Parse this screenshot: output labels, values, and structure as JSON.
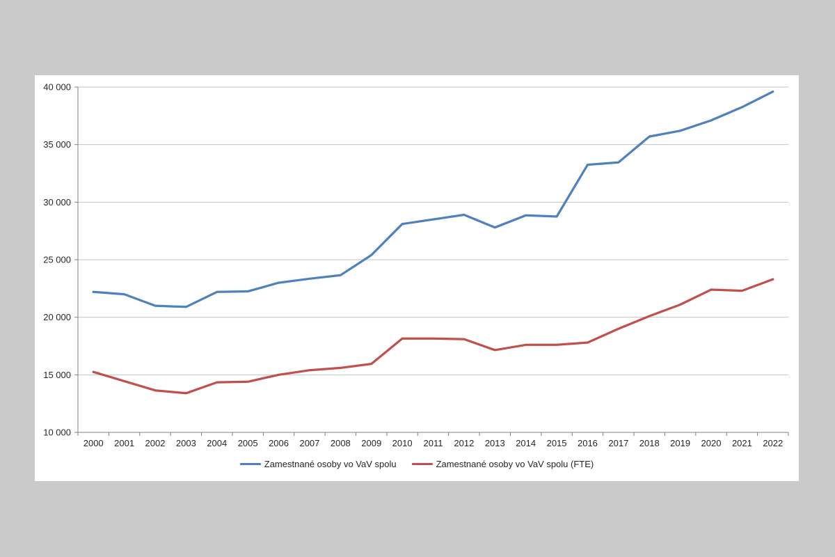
{
  "colors": {
    "background": "#cacaca",
    "panel": "#ffffff",
    "gridline": "#c3c3c3",
    "axis": "#808080",
    "text": "#262626"
  },
  "chart_data": {
    "type": "line",
    "title": "",
    "xlabel": "",
    "ylabel": "",
    "grid": "horizontal",
    "legend_position": "bottom",
    "ylim": [
      10000,
      40000
    ],
    "y_ticks": [
      10000,
      15000,
      20000,
      25000,
      30000,
      35000,
      40000
    ],
    "y_tick_labels": [
      "10 000",
      "15 000",
      "20 000",
      "25 000",
      "30 000",
      "35 000",
      "40 000"
    ],
    "categories": [
      "2000",
      "2001",
      "2002",
      "2003",
      "2004",
      "2005",
      "2006",
      "2007",
      "2008",
      "2009",
      "2010",
      "2011",
      "2012",
      "2013",
      "2014",
      "2015",
      "2016",
      "2017",
      "2018",
      "2019",
      "2020",
      "2021",
      "2022"
    ],
    "series": [
      {
        "name": "Zamestnané osoby vo VaV spolu",
        "color": "#4F81BD",
        "values": [
          22200,
          22000,
          21000,
          20900,
          22200,
          22250,
          23000,
          23350,
          23650,
          25400,
          28100,
          28500,
          28900,
          27800,
          28850,
          28750,
          33250,
          33450,
          35700,
          36200,
          37100,
          38250,
          39600
        ]
      },
      {
        "name": "Zamestnané osoby vo VaV spolu (FTE)",
        "color": "#C0504D",
        "values": [
          15250,
          14450,
          13650,
          13400,
          14350,
          14400,
          15000,
          15400,
          15600,
          15950,
          18150,
          18150,
          18100,
          17150,
          17600,
          17600,
          17800,
          19000,
          20100,
          21100,
          22400,
          22300,
          23300
        ]
      }
    ]
  }
}
